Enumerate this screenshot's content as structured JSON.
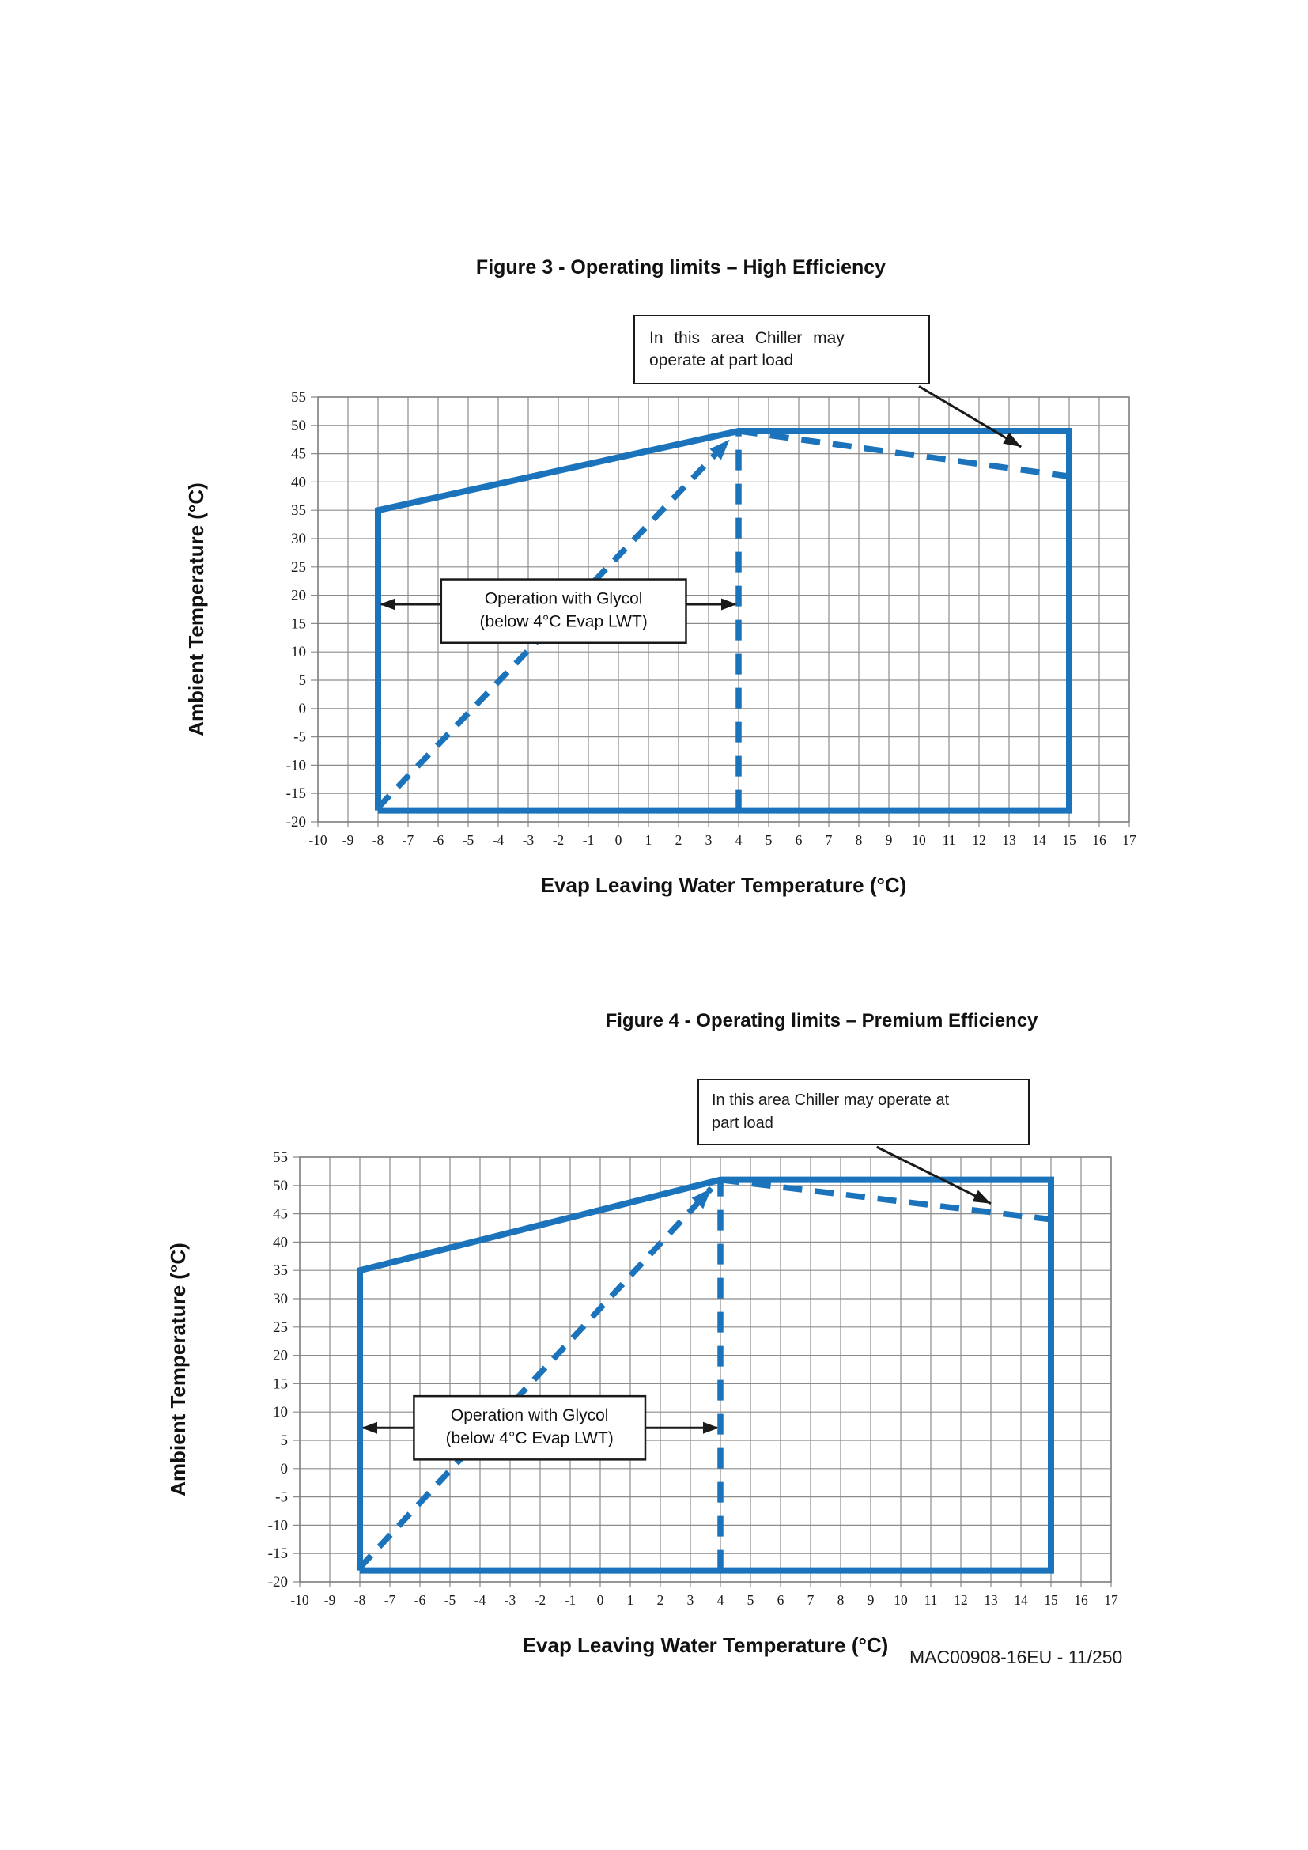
{
  "page": {
    "type": "document-page"
  },
  "footer": {
    "text": "MAC00908-16EU - 11/250"
  },
  "colors": {
    "line_blue": "#1b74bb",
    "grid": "#8c8c8c",
    "plot_border": "#7d7d7d",
    "annotation_black": "#1a1a1a",
    "background": "#ffffff"
  },
  "figures": [
    {
      "title": "Figure 3 - Operating limits – High Efficiency",
      "callout": {
        "line1": "In this area Chiller may",
        "line2": "operate at part load"
      },
      "chart_data": {
        "type": "line",
        "title": "Figure 3 - Operating limits – High Efficiency",
        "xlabel": "Evap Leaving Water Temperature (°C)",
        "ylabel": "Ambient Temperature (°C)",
        "xlim": [
          -10,
          17
        ],
        "xstep": 1,
        "ylim": [
          -20,
          55
        ],
        "ystep": 5,
        "grid": true,
        "legend": "none",
        "series": [
          {
            "name": "operating-envelope",
            "style": "solid",
            "points": [
              [
                -8,
                -18
              ],
              [
                -8,
                35
              ],
              [
                4,
                49
              ],
              [
                15,
                49
              ],
              [
                15,
                -18
              ],
              [
                -8,
                -18
              ]
            ]
          },
          {
            "name": "part-load-limit",
            "style": "dashed",
            "dash": "24 16",
            "points": [
              [
                4,
                49
              ],
              [
                15,
                41
              ]
            ]
          },
          {
            "name": "glycol-diagonal-limit",
            "style": "dashed",
            "dash": "21 15",
            "arrow_end": true,
            "points": [
              [
                -8,
                -17.5
              ],
              [
                3.7,
                47.5
              ]
            ]
          },
          {
            "name": "glycol-vertical-limit",
            "style": "dashed",
            "dash": "26 17",
            "points": [
              [
                4,
                -18
              ],
              [
                4,
                48.5
              ]
            ]
          }
        ],
        "annotations": {
          "glycol_box": {
            "x1": -5.9,
            "x2": 2.25,
            "y_top": 22.8,
            "y_bottom": 11.6,
            "lines": [
              "Operation with Glycol",
              "(below 4°C Evap LWT)"
            ],
            "arrow_y": 18.4,
            "arrow_left_to": -8,
            "arrow_right_to": 4
          },
          "callout_arrow": {
            "from": [
              10.0,
              56.9
            ],
            "to": [
              13.4,
              46.2
            ]
          }
        }
      }
    },
    {
      "title": "Figure 4 - Operating limits – Premium Efficiency",
      "callout": {
        "line1": "In this area Chiller may operate at",
        "line2": "part load"
      },
      "chart_data": {
        "type": "line",
        "title": "Figure 4 - Operating limits – Premium Efficiency",
        "xlabel": "Evap Leaving Water Temperature (°C)",
        "ylabel": "Ambient Temperature (°C)",
        "xlim": [
          -10,
          17
        ],
        "xstep": 1,
        "ylim": [
          -20,
          55
        ],
        "ystep": 5,
        "grid": true,
        "legend": "none",
        "series": [
          {
            "name": "operating-envelope",
            "style": "solid",
            "points": [
              [
                -8,
                -18
              ],
              [
                -8,
                35
              ],
              [
                4,
                51
              ],
              [
                15,
                51
              ],
              [
                15,
                -18
              ],
              [
                -8,
                -18
              ]
            ]
          },
          {
            "name": "part-load-limit",
            "style": "dashed",
            "dash": "24 16",
            "points": [
              [
                4,
                51
              ],
              [
                15,
                44
              ]
            ]
          },
          {
            "name": "glycol-diagonal-limit",
            "style": "dashed",
            "dash": "21 15",
            "arrow_end": true,
            "points": [
              [
                -8,
                -17.5
              ],
              [
                3.7,
                49.5
              ]
            ]
          },
          {
            "name": "glycol-vertical-limit",
            "style": "dashed",
            "dash": "26 17",
            "points": [
              [
                4,
                -18
              ],
              [
                4,
                50.5
              ]
            ]
          }
        ],
        "annotations": {
          "glycol_box": {
            "x1": -6.2,
            "x2": 1.5,
            "y_top": 12.8,
            "y_bottom": 1.6,
            "lines": [
              "Operation with Glycol",
              "(below 4°C Evap LWT)"
            ],
            "arrow_y": 7.2,
            "arrow_left_to": -8,
            "arrow_right_to": 4
          },
          "callout_arrow": {
            "from": [
              9.2,
              56.8
            ],
            "to": [
              13.0,
              46.8
            ]
          }
        }
      }
    }
  ]
}
